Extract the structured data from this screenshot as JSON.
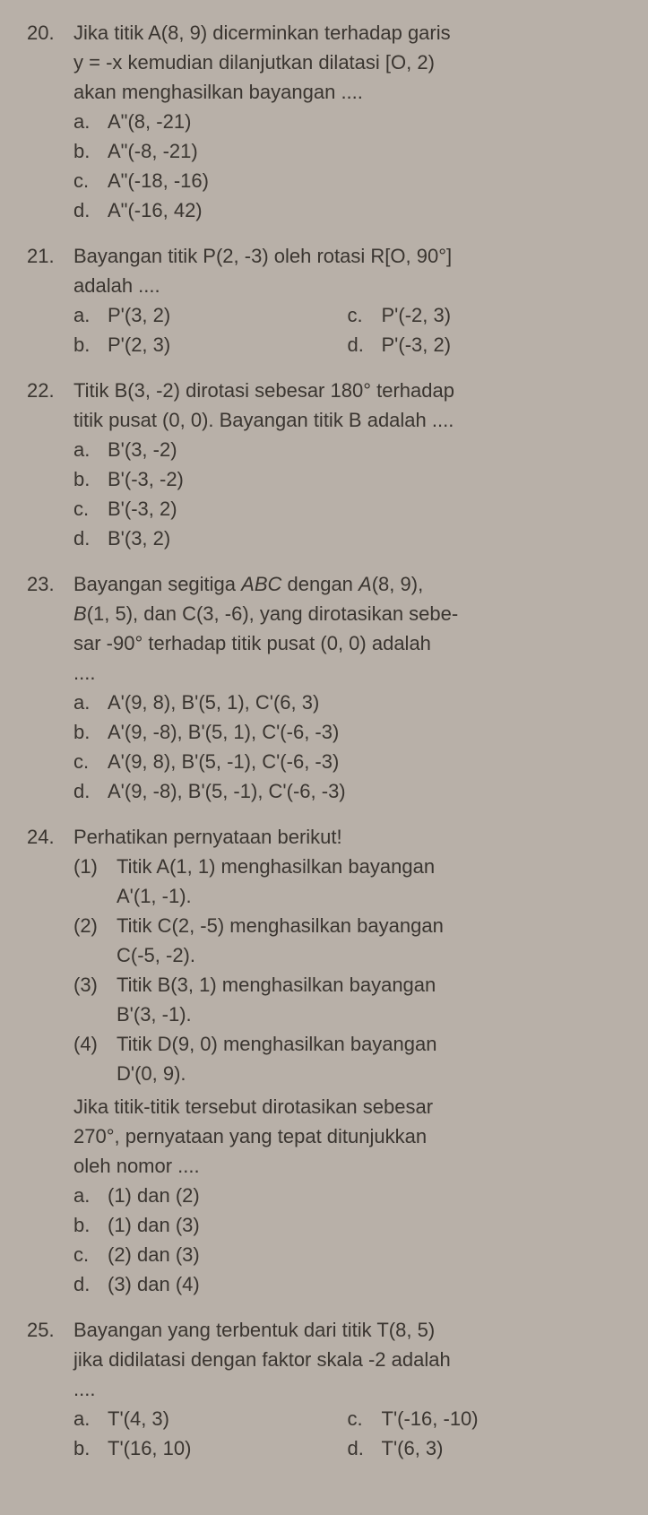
{
  "q20": {
    "number": "20.",
    "text_l1": "Jika titik A(8, 9) dicerminkan terhadap garis",
    "text_l2": "y = -x kemudian dilanjutkan dilatasi [O, 2)",
    "text_l3": "akan menghasilkan bayangan ....",
    "options": {
      "a": {
        "label": "a.",
        "text": "A\"(8, -21)"
      },
      "b": {
        "label": "b.",
        "text": "A\"(-8, -21)"
      },
      "c": {
        "label": "c.",
        "text": "A\"(-18, -16)"
      },
      "d": {
        "label": "d.",
        "text": "A\"(-16, 42)"
      }
    }
  },
  "q21": {
    "number": "21.",
    "text_l1": "Bayangan titik P(2, -3) oleh rotasi R[O, 90°]",
    "text_l2": "adalah ....",
    "options": {
      "a": {
        "label": "a.",
        "text": "P'(3, 2)"
      },
      "b": {
        "label": "b.",
        "text": "P'(2, 3)"
      },
      "c": {
        "label": "c.",
        "text": "P'(-2, 3)"
      },
      "d": {
        "label": "d.",
        "text": "P'(-3, 2)"
      }
    }
  },
  "q22": {
    "number": "22.",
    "text_l1": "Titik B(3, -2) dirotasi sebesar 180° terhadap",
    "text_l2": "titik pusat (0, 0). Bayangan titik B adalah ....",
    "options": {
      "a": {
        "label": "a.",
        "text": "B'(3, -2)"
      },
      "b": {
        "label": "b.",
        "text": "B'(-3, -2)"
      },
      "c": {
        "label": "c.",
        "text": "B'(-3, 2)"
      },
      "d": {
        "label": "d.",
        "text": "B'(3, 2)"
      }
    }
  },
  "q23": {
    "number": "23.",
    "text_l1": "Bayangan segitiga ",
    "text_l1_italic": "ABC",
    "text_l1b": " dengan ",
    "text_l1_italic2": "A",
    "text_l1c": "(8, 9),",
    "text_l2_italic": "B",
    "text_l2": "(1, 5), dan C(3, -6), yang dirotasikan sebe-",
    "text_l3": "sar -90° terhadap titik pusat (0, 0) adalah",
    "text_l4": "....",
    "options": {
      "a": {
        "label": "a.",
        "text": "A'(9, 8), B'(5, 1), C'(6, 3)"
      },
      "b": {
        "label": "b.",
        "text": "A'(9, -8), B'(5, 1), C'(-6, -3)"
      },
      "c": {
        "label": "c.",
        "text": "A'(9, 8), B'(5, -1), C'(-6, -3)"
      },
      "d": {
        "label": "d.",
        "text": "A'(9, -8), B'(5, -1), C'(-6, -3)"
      }
    }
  },
  "q24": {
    "number": "24.",
    "text": "Perhatikan pernyataan berikut!",
    "items": {
      "i1": {
        "label": "(1)",
        "text": "Titik A(1, 1) menghasilkan bayangan",
        "text2": "A'(1, -1)."
      },
      "i2": {
        "label": "(2)",
        "text": "Titik C(2, -5) menghasilkan bayangan",
        "text2": "C(-5, -2)."
      },
      "i3": {
        "label": "(3)",
        "text": "Titik B(3, 1) menghasilkan bayangan",
        "text2": "B'(3, -1)."
      },
      "i4": {
        "label": "(4)",
        "text": "Titik D(9, 0) menghasilkan bayangan",
        "text2": "D'(0, 9)."
      }
    },
    "followup_l1": "Jika titik-titik tersebut dirotasikan sebesar",
    "followup_l2": "270°, pernyataan yang tepat ditunjukkan",
    "followup_l3": "oleh nomor ....",
    "options": {
      "a": {
        "label": "a.",
        "text": "(1) dan (2)"
      },
      "b": {
        "label": "b.",
        "text": "(1) dan (3)"
      },
      "c": {
        "label": "c.",
        "text": "(2) dan (3)"
      },
      "d": {
        "label": "d.",
        "text": "(3) dan (4)"
      }
    }
  },
  "q25": {
    "number": "25.",
    "text_l1": "Bayangan yang terbentuk dari titik T(8, 5)",
    "text_l2": "jika didilatasi dengan faktor skala -2 adalah",
    "text_l3": "....",
    "options": {
      "a": {
        "label": "a.",
        "text": "T'(4, 3)"
      },
      "b": {
        "label": "b.",
        "text": "T'(16, 10)"
      },
      "c": {
        "label": "c.",
        "text": "T'(-16, -10)"
      },
      "d": {
        "label": "d.",
        "text": "T'(6, 3)"
      }
    }
  }
}
